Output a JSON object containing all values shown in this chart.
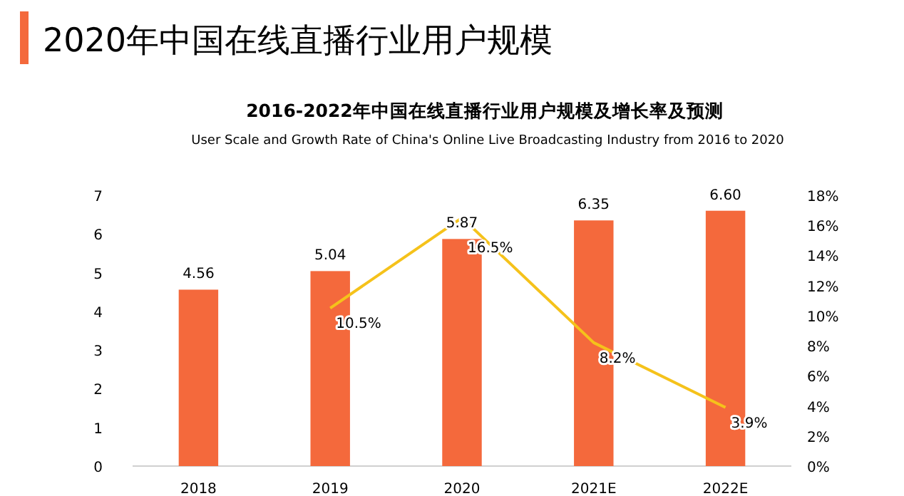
{
  "chart_data": {
    "type": "bar",
    "title": "2020年中国在线直播行业用户规模",
    "subtitle": "2016-2022年中国在线直播行业用户规模及增长率及预测",
    "annotations": [
      "User Scale and Growth Rate of China's Online Live Broadcasting Industry from 2016 to 2020"
    ],
    "categories": [
      "2018",
      "2019",
      "2020",
      "2021E",
      "2022E"
    ],
    "series": [
      {
        "color": "#f4693c",
        "values": [
          4.56,
          5.04,
          5.87,
          6.35,
          6.6
        ]
      },
      {
        "type": "line",
        "axis": "y2",
        "color": "#f5c21b",
        "values": [
          null,
          10.5,
          16.5,
          8.2,
          3.9
        ]
      }
    ],
    "value_labels": [
      [
        "4.56",
        "5.04",
        "5.87",
        "6.35",
        "6.60"
      ],
      [
        null,
        "10.5%",
        "16.5%",
        "8.2%",
        "3.9%"
      ]
    ],
    "ylim": [
      0,
      7
    ],
    "yticks": [
      0,
      1,
      2,
      3,
      4,
      5,
      6,
      7
    ],
    "y2lim": [
      0,
      18
    ],
    "y2ticks": [
      {
        "value": 0,
        "label": "0%"
      },
      {
        "value": 2,
        "label": "2%"
      },
      {
        "value": 4,
        "label": "4%"
      },
      {
        "value": 6,
        "label": "6%"
      },
      {
        "value": 8,
        "label": "8%"
      },
      {
        "value": 10,
        "label": "10%"
      },
      {
        "value": 12,
        "label": "12%"
      },
      {
        "value": 14,
        "label": "14%"
      },
      {
        "value": 16,
        "label": "16%"
      },
      {
        "value": 18,
        "label": "18%"
      }
    ],
    "grid": false,
    "marker": "none",
    "line_style": "solid"
  }
}
